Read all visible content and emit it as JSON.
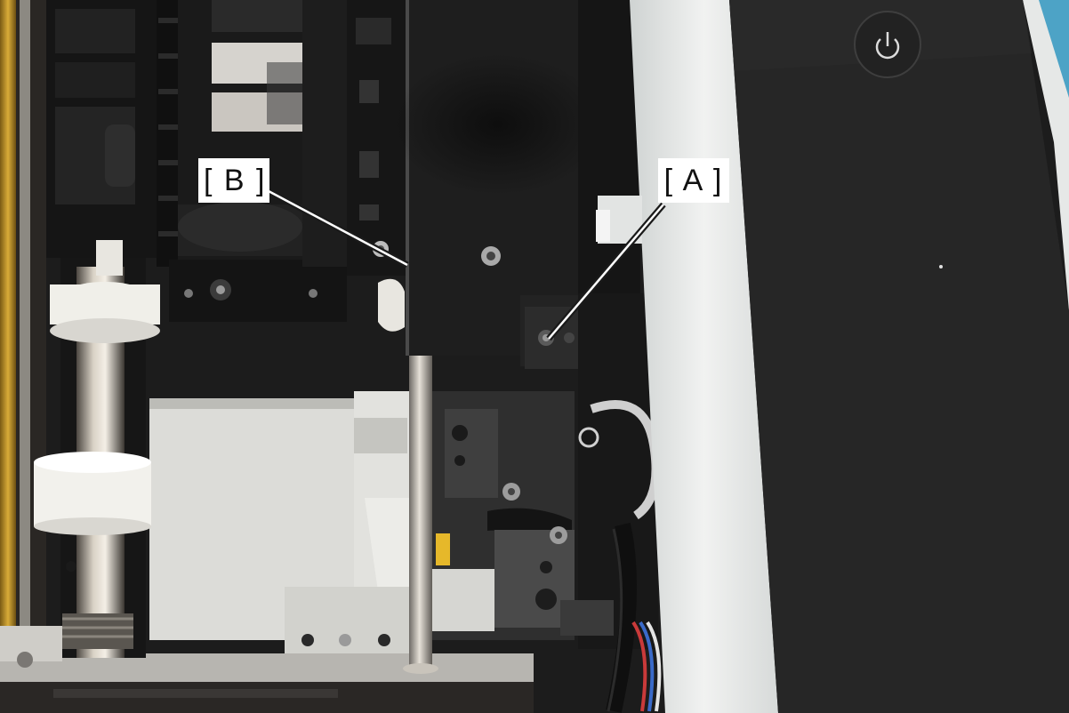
{
  "callouts": {
    "a": {
      "text": "[ A ]"
    },
    "b": {
      "text": "[ B ]"
    }
  },
  "device": {
    "power_button_icon": "power-icon"
  },
  "colors": {
    "callout_bg": "#ffffff",
    "callout_line": "#ffffff",
    "chassis_black": "#1e1e1e",
    "white_housing": "#e9ebea",
    "control_panel": "#262626",
    "blue_cover": "#4da3c6",
    "metal_rod": "#b9b3aa"
  }
}
